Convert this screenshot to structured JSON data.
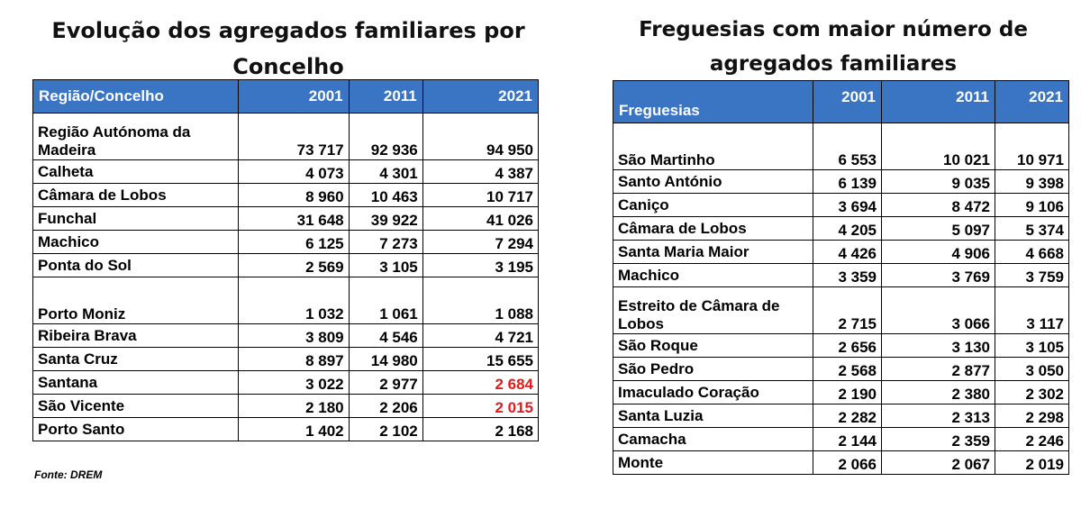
{
  "left_title": "Evolução dos agregados familiares por Concelho",
  "right_title": "Freguesias com maior número de agregados familiares",
  "colors": {
    "header_bg": "#3a75c4",
    "header_text": "#ffffff",
    "highlight": "#e01b1b"
  },
  "left_table": {
    "headers": [
      "Região/Concelho",
      "2001",
      "2011",
      "2021"
    ],
    "rows": [
      {
        "name": "Região Autónoma da Madeira",
        "v2001": "73 717",
        "v2011": "92 936",
        "v2021": "94 950",
        "tall": true
      },
      {
        "name": "Calheta",
        "v2001": "4 073",
        "v2011": "4 301",
        "v2021": "4 387"
      },
      {
        "name": "Câmara de Lobos",
        "v2001": "8 960",
        "v2011": "10 463",
        "v2021": "10 717"
      },
      {
        "name": "Funchal",
        "v2001": "31 648",
        "v2011": "39 922",
        "v2021": "41 026"
      },
      {
        "name": "Machico",
        "v2001": "6 125",
        "v2011": "7 273",
        "v2021": "7 294"
      },
      {
        "name": "Ponta do Sol",
        "v2001": "2 569",
        "v2011": "3 105",
        "v2021": "3 195"
      },
      {
        "name": "Porto Moniz",
        "v2001": "1 032",
        "v2011": "1 061",
        "v2021": "1 088",
        "tall": true
      },
      {
        "name": "Ribeira Brava",
        "v2001": "3 809",
        "v2011": "4 546",
        "v2021": "4 721"
      },
      {
        "name": "Santa Cruz",
        "v2001": "8 897",
        "v2011": "14 980",
        "v2021": "15 655"
      },
      {
        "name": "Santana",
        "v2001": "3 022",
        "v2011": "2 977",
        "v2021": "2 684",
        "red2021": true
      },
      {
        "name": "São Vicente",
        "v2001": "2 180",
        "v2011": "2 206",
        "v2021": "2 015",
        "red2021": true
      },
      {
        "name": "Porto Santo",
        "v2001": "1 402",
        "v2011": "2 102",
        "v2021": "2 168"
      }
    ]
  },
  "right_table": {
    "headers": [
      "Freguesias",
      "2001",
      "2011",
      "2021"
    ],
    "rows": [
      {
        "name": "São Martinho",
        "v2001": "6 553",
        "v2011": "10 021",
        "v2021": "10 971",
        "tall": true
      },
      {
        "name": "Santo António",
        "v2001": "6 139",
        "v2011": "9 035",
        "v2021": "9 398"
      },
      {
        "name": "Caniço",
        "v2001": "3 694",
        "v2011": "8 472",
        "v2021": "9 106"
      },
      {
        "name": "Câmara de Lobos",
        "v2001": "4 205",
        "v2011": "5 097",
        "v2021": "5 374"
      },
      {
        "name": "Santa Maria Maior",
        "v2001": "4 426",
        "v2011": "4 906",
        "v2021": "4 668"
      },
      {
        "name": "Machico",
        "v2001": "3 359",
        "v2011": "3 769",
        "v2021": "3 759"
      },
      {
        "name": "Estreito de Câmara de Lobos",
        "v2001": "2 715",
        "v2011": "3 066",
        "v2021": "3 117",
        "tall": true
      },
      {
        "name": "São Roque",
        "v2001": "2 656",
        "v2011": "3 130",
        "v2021": "3 105"
      },
      {
        "name": "São Pedro",
        "v2001": "2 568",
        "v2011": "2 877",
        "v2021": "3 050"
      },
      {
        "name": "Imaculado Coração",
        "v2001": "2 190",
        "v2011": "2 380",
        "v2021": "2 302"
      },
      {
        "name": "Santa Luzia",
        "v2001": "2 282",
        "v2011": "2 313",
        "v2021": "2 298"
      },
      {
        "name": "Camacha",
        "v2001": "2 144",
        "v2011": "2 359",
        "v2021": "2 246"
      },
      {
        "name": "Monte",
        "v2001": "2 066",
        "v2011": "2 067",
        "v2021": "2 019"
      }
    ]
  },
  "source": "Fonte: DREM"
}
